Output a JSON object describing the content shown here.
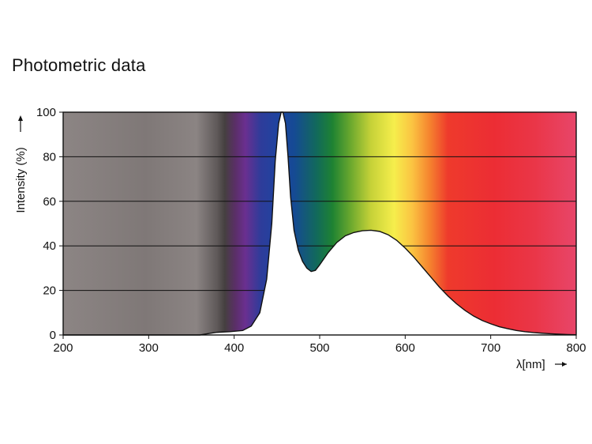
{
  "page": {
    "title": "Photometric data"
  },
  "chart_data": {
    "type": "area",
    "title": "Photometric data",
    "xlabel": "λ[nm]",
    "ylabel": "Intensity (%)",
    "xlim": [
      200,
      800
    ],
    "ylim": [
      0,
      100
    ],
    "x_ticks": [
      200,
      300,
      400,
      500,
      600,
      700,
      800
    ],
    "y_ticks": [
      0,
      20,
      40,
      60,
      80,
      100
    ],
    "grid": "horizontal",
    "background": "visible spectrum color gradient (grey UV region, violet to red)",
    "fill_under_curve": "#ffffff",
    "series": [
      {
        "x": [
          200,
          360,
          368,
          380,
          395,
          410,
          420,
          430,
          438,
          444,
          448,
          452,
          455,
          457,
          460,
          463,
          466,
          470,
          475,
          480,
          485,
          490,
          495,
          500,
          510,
          520,
          530,
          540,
          550,
          560,
          570,
          580,
          590,
          600,
          610,
          620,
          630,
          640,
          650,
          660,
          670,
          680,
          690,
          700,
          710,
          720,
          730,
          740,
          750,
          760,
          770,
          780,
          790,
          800
        ],
        "y": [
          0,
          0,
          0.5,
          1.2,
          1.5,
          2,
          4,
          10,
          25,
          50,
          78,
          95,
          100,
          100,
          95,
          80,
          62,
          47,
          38,
          33,
          30,
          28.5,
          29,
          31.5,
          37,
          41.5,
          44.5,
          46,
          46.8,
          47,
          46.5,
          45,
          42.5,
          39,
          35,
          30.5,
          26,
          21.5,
          17.5,
          14,
          11,
          8.5,
          6.5,
          5,
          3.7,
          2.8,
          2,
          1.5,
          1.1,
          0.8,
          0.55,
          0.35,
          0.2,
          0.1
        ]
      }
    ]
  }
}
